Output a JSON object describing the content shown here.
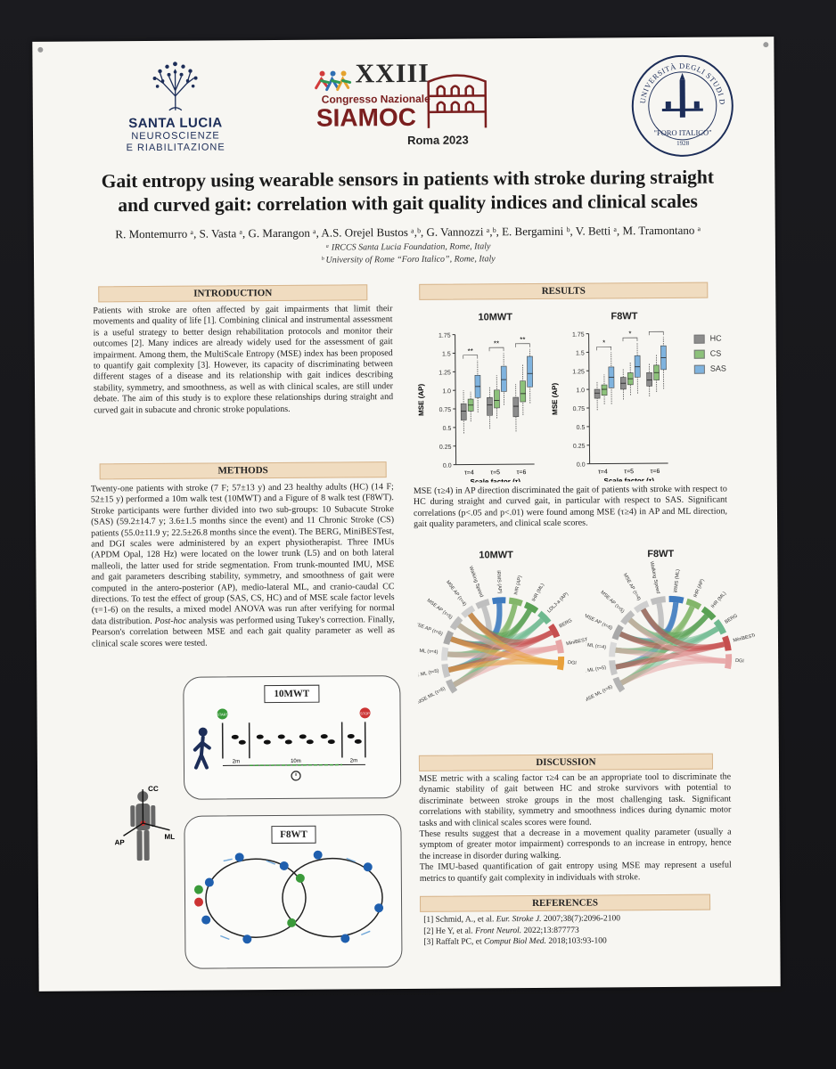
{
  "header": {
    "santa_lucia": {
      "name": "SANTA LUCIA",
      "sub1": "NEUROSCIENZE",
      "sub2": "E RIABILITAZIONE"
    },
    "siamoc": {
      "roman": "XXIII",
      "congress": "Congresso Nazionale",
      "name": "SIAMOC",
      "city": "Roma 2023"
    },
    "foro": {
      "label": "\"FORO ITALICO\"",
      "year": "1928",
      "ring_text": "UNIVERSITÀ DEGLI STUDI DI ROMA"
    }
  },
  "title_line1": "Gait entropy using wearable sensors in patients with stroke during straight",
  "title_line2": "and curved gait: correlation with gait quality indices and clinical scales",
  "authors": "R. Montemurro ᵃ, S. Vasta ᵃ, G. Marangon ᵃ, A.S. Orejel Bustos ᵃ,ᵇ, G. Vannozzi ᵃ,ᵇ, E. Bergamini ᵇ, V. Betti ᵃ, M. Tramontano ᵃ",
  "affiliations": [
    "ᵃ IRCCS Santa Lucia Foundation, Rome, Italy",
    "ᵇ University of Rome “Foro Italico”, Rome, Italy"
  ],
  "introduction": {
    "heading": "INTRODUCTION",
    "text": "Patients with stroke are often affected by gait impairments that limit their movements and quality of life [1]. Combining clinical and instrumental assessment is a useful strategy to better design rehabilitation protocols and monitor their outcomes [2]. Many indices are already widely used for the assessment of gait impairment. Among them, the MultiScale Entropy (MSE) index has been proposed to quantify gait complexity [3]. However, its capacity of discriminating between different stages of a disease and its relationship with gait indices describing stability, symmetry, and smoothness, as well as with clinical scales, are still under debate. The aim of this study is to explore these relationships during straight and curved gait in subacute and chronic stroke populations."
  },
  "methods": {
    "heading": "METHODS",
    "text_a": "Twenty-one patients with stroke (7 F; 57±13 y) and 23 healthy adults (HC) (14 F; 52±15 y) performed a 10m walk test (10MWT) and a Figure of 8 walk test (F8WT). Stroke participants were further divided into two sub-groups: 10 Subacute Stroke (SAS) (59.2±14.7 y; 3.6±1.5 months since the event) and 11 Chronic Stroke (CS) patients (55.0±11.9 y; 22.5±26.8 months since the event). The BERG, MiniBESTest, and DGI scales were administered by an expert physiotherapist. Three IMUs (APDM Opal, 128 Hz) were located on the lower trunk (L5) and on both lateral malleoli, the latter used for stride segmentation. From trunk-mounted IMU, MSE and gait parameters describing stability, symmetry, and smoothness of gait were computed in the antero-posterior (AP), medio-lateral ML, and cranio-caudal CC directions. To test the effect of group (SAS, CS, HC) and of MSE scale factor levels (τ=1-6) on the results, a mixed model ANOVA was run after verifying for normal data distribution. ",
    "text_posthoc": "Post-hoc",
    "text_b": " analysis was performed using Tukey's correction. Finally, Pearson's correlation between MSE and each gait quality parameter as well as clinical scale scores were tested."
  },
  "setup_figure": {
    "tmwt_label": "10MWT",
    "f8wt_label": "F8WT",
    "start_label": "START",
    "stop_label": "STOP",
    "dist_left": "2m",
    "dist_mid": "10m",
    "dist_right": "2m",
    "axes": {
      "cc": "CC",
      "ml": "ML",
      "ap": "AP"
    }
  },
  "results": {
    "heading": "RESULTS",
    "text": "MSE (τ≥4) in AP direction discriminated the gait of patients with stroke with respect to HC during straight and curved gait, in particular with respect to SAS. Significant correlations (p<.05 and p<.01) were found among MSE (τ≥4) in AP and ML direction, gait quality parameters, and clinical scale scores.",
    "chord_titles": [
      "10MWT",
      "F8WT"
    ],
    "chord_labels_10mwt": [
      "MSE ML (τ=6)",
      "MSE ML (τ=5)",
      "MSE ML (τ=4)",
      "MSE AP (τ=6)",
      "MSE AP (τ=5)",
      "MSE AP (τ=4)",
      "Walking Speed",
      "iRMS (AP)",
      "IHR (AP)",
      "IHR (ML)",
      "LDLJ-a (AP)",
      "BERG",
      "MiniBESTest",
      "DGI"
    ],
    "chord_labels_f8wt": [
      "MSE ML (τ=6)",
      "MSE ML (τ=5)",
      "MSE ML (τ=4)",
      "MSE AP (τ=6)",
      "MSE AP (τ=5)",
      "MSE AP (τ=4)",
      "Walking Speed",
      "iRMS (ML)",
      "IHR (AP)",
      "IHR (ML)",
      "BERG",
      "MiniBESTest",
      "DGI"
    ]
  },
  "discussion": {
    "heading": "DISCUSSION",
    "p1": "MSE metric with a scaling factor τ≥4 can be an appropriate tool to discriminate the dynamic stability of gait between HC and stroke survivors with potential to discriminate between stroke groups in the most challenging task. Significant correlations with stability, symmetry and smoothness indices during dynamic motor tasks and with clinical scales scores were found.",
    "p2": "These results suggest that a decrease in a movement quality parameter (usually a symptom of greater motor impairment) corresponds to an increase in entropy, hence the increase in disorder during walking.",
    "p3": "The IMU-based quantification of gait entropy using MSE may represent a useful metrics to quantify gait complexity in individuals with stroke."
  },
  "references": {
    "heading": "REFERENCES",
    "items": [
      {
        "pre": "[1] Schmid, A., et al.  ",
        "journal": "Eur. Stroke J.",
        "post": " 2007;38(7):2096-2100"
      },
      {
        "pre": "[2] He Y, et al. ",
        "journal": "Front Neurol.",
        "post": " 2022;13:877773"
      },
      {
        "pre": "[3] Raffalt PC, et ",
        "journal": "Comput Biol Med.",
        "post": " 2018;103:93-100"
      }
    ]
  },
  "chart_data": [
    {
      "type": "box",
      "title": "10MWT",
      "xlabel": "Scale factor (τ)",
      "ylabel": "MSE (AP)",
      "categories": [
        "τ=4",
        "τ=5",
        "τ=6"
      ],
      "ylim": [
        0.0,
        1.75
      ],
      "yticks": [
        "0.0",
        "0.25",
        "0.5",
        "0.75",
        "1.0",
        "1.25",
        "1.5",
        "1.75"
      ],
      "series": [
        {
          "name": "HC",
          "color": "#8c8c8c",
          "medians": [
            0.72,
            0.8,
            0.78
          ],
          "q1": [
            0.6,
            0.66,
            0.64
          ],
          "q3": [
            0.82,
            0.9,
            0.9
          ],
          "min": [
            0.42,
            0.48,
            0.44
          ],
          "max": [
            1.0,
            1.05,
            1.08
          ]
        },
        {
          "name": "CS",
          "color": "#8cc17a",
          "medians": [
            0.8,
            0.86,
            0.95
          ],
          "q1": [
            0.72,
            0.76,
            0.84
          ],
          "q3": [
            0.88,
            1.0,
            1.12
          ],
          "min": [
            0.58,
            0.62,
            0.66
          ],
          "max": [
            0.98,
            1.2,
            1.34
          ]
        },
        {
          "name": "SAS",
          "color": "#7fb3de",
          "medians": [
            1.05,
            1.14,
            1.22
          ],
          "q1": [
            0.9,
            0.98,
            1.04
          ],
          "q3": [
            1.2,
            1.32,
            1.45
          ],
          "min": [
            0.7,
            0.8,
            0.82
          ],
          "max": [
            1.4,
            1.5,
            1.55
          ]
        }
      ],
      "annotations": [
        "**",
        "-",
        "**",
        "-",
        "**",
        "-",
        "*"
      ]
    },
    {
      "type": "box",
      "title": "F8WT",
      "xlabel": "Scale factor (τ)",
      "ylabel": "MSE (AP)",
      "categories": [
        "τ=4",
        "τ=5",
        "τ=6"
      ],
      "ylim": [
        0.0,
        1.75
      ],
      "yticks": [
        "0.0",
        "0.25",
        "0.5",
        "0.75",
        "1.0",
        "1.25",
        "1.5",
        "1.75"
      ],
      "series": [
        {
          "name": "HC",
          "color": "#8c8c8c",
          "medians": [
            0.95,
            1.08,
            1.12
          ],
          "q1": [
            0.88,
            1.0,
            1.04
          ],
          "q3": [
            1.0,
            1.16,
            1.22
          ],
          "min": [
            0.72,
            0.86,
            0.9
          ],
          "max": [
            1.1,
            1.28,
            1.34
          ]
        },
        {
          "name": "CS",
          "color": "#8cc17a",
          "medians": [
            1.0,
            1.14,
            1.22
          ],
          "q1": [
            0.92,
            1.06,
            1.12
          ],
          "q3": [
            1.06,
            1.22,
            1.32
          ],
          "min": [
            0.8,
            0.92,
            0.96
          ],
          "max": [
            1.2,
            1.36,
            1.46
          ]
        },
        {
          "name": "SAS",
          "color": "#7fb3de",
          "medians": [
            1.16,
            1.3,
            1.42
          ],
          "q1": [
            1.02,
            1.16,
            1.26
          ],
          "q3": [
            1.3,
            1.45,
            1.58
          ],
          "min": [
            0.8,
            0.94,
            1.0
          ],
          "max": [
            1.5,
            1.62,
            1.7
          ]
        }
      ],
      "annotations": [
        "*",
        "*",
        "*",
        "*"
      ]
    }
  ]
}
